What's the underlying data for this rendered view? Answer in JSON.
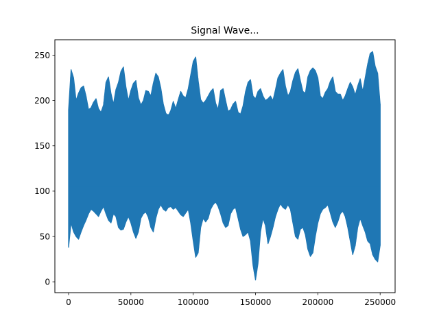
{
  "chart_data": {
    "type": "line",
    "title": "Signal Wave...",
    "xlabel": "",
    "ylabel": "",
    "xlim": [
      -11000,
      262000
    ],
    "ylim": [
      -12,
      267
    ],
    "x_ticks": [
      0,
      50000,
      100000,
      150000,
      200000,
      250000
    ],
    "x_tick_labels": [
      "0",
      "50000",
      "100000",
      "150000",
      "200000",
      "250000"
    ],
    "y_ticks": [
      0,
      50,
      100,
      150,
      200,
      250
    ],
    "y_tick_labels": [
      "0",
      "50",
      "100",
      "150",
      "200",
      "250"
    ],
    "grid": false,
    "series": [
      {
        "color": "#1f77b4",
        "x_start": 0,
        "x_end": 250000,
        "envelope_x": [
          0,
          2000,
          4000,
          6000,
          8000,
          10000,
          12000,
          14000,
          16000,
          18000,
          20000,
          22000,
          24000,
          26000,
          28000,
          30000,
          32000,
          34000,
          36000,
          38000,
          40000,
          42000,
          44000,
          46000,
          48000,
          50000,
          52000,
          54000,
          56000,
          58000,
          60000,
          62000,
          64000,
          66000,
          68000,
          70000,
          72000,
          74000,
          76000,
          78000,
          80000,
          82000,
          84000,
          86000,
          88000,
          90000,
          92000,
          94000,
          96000,
          98000,
          100000,
          102000,
          104000,
          106000,
          108000,
          110000,
          112000,
          114000,
          116000,
          118000,
          120000,
          122000,
          124000,
          126000,
          128000,
          130000,
          132000,
          134000,
          136000,
          138000,
          140000,
          142000,
          144000,
          146000,
          148000,
          150000,
          152000,
          154000,
          156000,
          158000,
          160000,
          162000,
          164000,
          166000,
          168000,
          170000,
          172000,
          174000,
          176000,
          178000,
          180000,
          182000,
          184000,
          186000,
          188000,
          190000,
          192000,
          194000,
          196000,
          198000,
          200000,
          202000,
          204000,
          206000,
          208000,
          210000,
          212000,
          214000,
          216000,
          218000,
          220000,
          222000,
          224000,
          226000,
          228000,
          230000,
          232000,
          234000,
          236000,
          238000,
          240000,
          242000,
          244000,
          246000,
          248000,
          250000
        ],
        "envelope_max": [
          190,
          234,
          225,
          200,
          208,
          214,
          216,
          205,
          190,
          192,
          198,
          202,
          191,
          187,
          195,
          220,
          226,
          208,
          196,
          212,
          220,
          232,
          237,
          215,
          200,
          211,
          219,
          222,
          203,
          195,
          200,
          211,
          210,
          205,
          219,
          230,
          226,
          214,
          196,
          186,
          183,
          189,
          199,
          191,
          201,
          210,
          205,
          203,
          213,
          228,
          243,
          248,
          222,
          201,
          197,
          200,
          205,
          210,
          213,
          197,
          190,
          211,
          213,
          200,
          188,
          190,
          196,
          199,
          187,
          185,
          194,
          210,
          220,
          223,
          205,
          202,
          210,
          213,
          205,
          200,
          202,
          205,
          200,
          212,
          225,
          230,
          234,
          216,
          205,
          210,
          222,
          231,
          235,
          222,
          210,
          208,
          226,
          233,
          236,
          233,
          225,
          205,
          202,
          209,
          213,
          221,
          226,
          210,
          207,
          207,
          200,
          205,
          213,
          220,
          215,
          206,
          216,
          224,
          210,
          225,
          240,
          252,
          254,
          238,
          230,
          196
        ],
        "envelope_min": [
          38,
          65,
          55,
          50,
          47,
          55,
          62,
          68,
          75,
          80,
          78,
          75,
          72,
          78,
          83,
          75,
          68,
          65,
          75,
          72,
          60,
          57,
          58,
          66,
          72,
          65,
          55,
          48,
          55,
          70,
          75,
          77,
          71,
          60,
          55,
          70,
          80,
          85,
          80,
          78,
          82,
          83,
          80,
          82,
          78,
          74,
          72,
          76,
          80,
          65,
          45,
          27,
          32,
          60,
          70,
          66,
          70,
          80,
          85,
          88,
          83,
          75,
          65,
          60,
          62,
          75,
          80,
          82,
          70,
          58,
          50,
          52,
          55,
          45,
          18,
          2,
          20,
          55,
          70,
          62,
          42,
          50,
          60,
          72,
          80,
          86,
          82,
          80,
          85,
          80,
          65,
          50,
          47,
          58,
          60,
          52,
          36,
          28,
          32,
          50,
          65,
          75,
          80,
          82,
          85,
          76,
          66,
          60,
          66,
          75,
          78,
          72,
          60,
          45,
          30,
          40,
          60,
          70,
          62,
          55,
          45,
          42,
          30,
          25,
          22,
          40
        ],
        "fill_mean": 145,
        "fill_halfwidth": 40
      }
    ]
  }
}
